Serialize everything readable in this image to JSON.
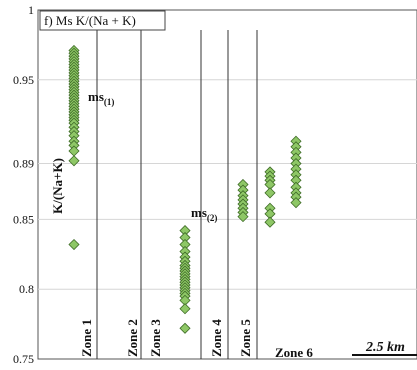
{
  "chart_data": {
    "type": "scatter",
    "title": "f) Ms K/(Na + K)",
    "ylabel": "K/(Na+K)",
    "ylim": [
      0.75,
      1.0
    ],
    "yticks": [
      {
        "v": 1.0,
        "label": "1"
      },
      {
        "v": 0.95,
        "label": "0.95"
      },
      {
        "v": 0.89,
        "label": "0.89"
      },
      {
        "v": 0.85,
        "label": "0.85"
      },
      {
        "v": 0.8,
        "label": "0.8"
      },
      {
        "v": 0.75,
        "label": "0.75"
      }
    ],
    "zones": [
      "Zone 1",
      "Zone 2",
      "Zone 3",
      "Zone 4",
      "Zone 5",
      "Zone 6"
    ],
    "annotations": [
      {
        "text": "ms",
        "sub": "(1)"
      },
      {
        "text": "ms",
        "sub": "(2)"
      }
    ],
    "scale_bar": "2.5 km",
    "marker_color": "#8ec766",
    "marker_stroke": "#3e6b26",
    "series": [
      {
        "zone": "Zone 1",
        "values": [
          0.971,
          0.969,
          0.967,
          0.965,
          0.963,
          0.961,
          0.959,
          0.957,
          0.955,
          0.953,
          0.951,
          0.949,
          0.947,
          0.945,
          0.943,
          0.941,
          0.939,
          0.937,
          0.935,
          0.933,
          0.931,
          0.929,
          0.927,
          0.925,
          0.923,
          0.921,
          0.919,
          0.916,
          0.913,
          0.91,
          0.906,
          0.903,
          0.899,
          0.892,
          0.832
        ]
      },
      {
        "zone": "Zone 3",
        "values": [
          0.842,
          0.837,
          0.832,
          0.827,
          0.823,
          0.82,
          0.817,
          0.815,
          0.813,
          0.811,
          0.809,
          0.807,
          0.805,
          0.803,
          0.801,
          0.799,
          0.797,
          0.795,
          0.792,
          0.786,
          0.772
        ]
      },
      {
        "zone": "Zone 5",
        "values": [
          0.875,
          0.871,
          0.867,
          0.864,
          0.861,
          0.858,
          0.855,
          0.852
        ]
      },
      {
        "zone": "Zone 6a",
        "values": [
          0.884,
          0.881,
          0.878,
          0.875,
          0.869,
          0.858,
          0.854,
          0.848
        ]
      },
      {
        "zone": "Zone 6b",
        "values": [
          0.906,
          0.902,
          0.898,
          0.894,
          0.89,
          0.886,
          0.882,
          0.878,
          0.873,
          0.869,
          0.866,
          0.862
        ]
      }
    ]
  }
}
